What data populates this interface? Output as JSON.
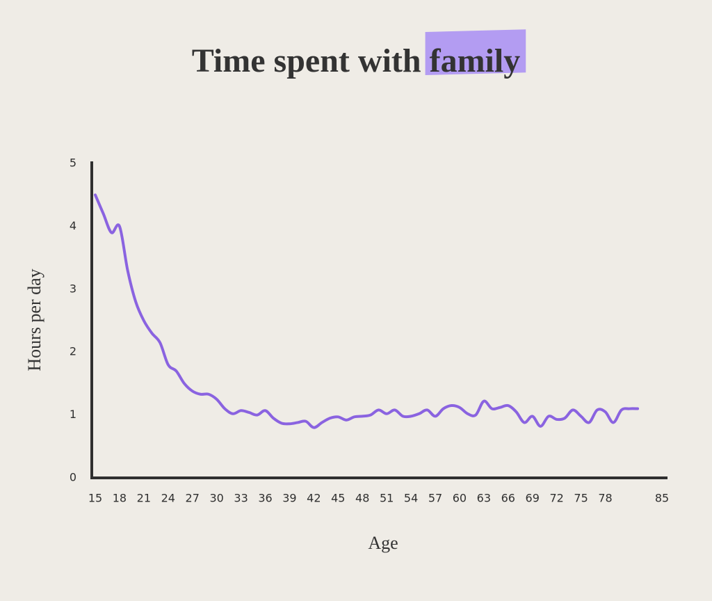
{
  "chart_data": {
    "type": "line",
    "title": "Time spent with family",
    "x_label": "Age",
    "y_label": "Hours per day",
    "x": [
      15,
      16,
      17,
      18,
      19,
      20,
      21,
      22,
      23,
      24,
      25,
      26,
      27,
      28,
      29,
      30,
      31,
      32,
      33,
      34,
      35,
      36,
      37,
      38,
      39,
      40,
      41,
      42,
      43,
      44,
      45,
      46,
      47,
      48,
      49,
      50,
      51,
      52,
      53,
      54,
      55,
      56,
      57,
      58,
      59,
      60,
      61,
      62,
      63,
      64,
      65,
      66,
      67,
      68,
      69,
      70,
      71,
      72,
      73,
      74,
      75,
      76,
      77,
      78,
      79,
      80,
      81,
      82
    ],
    "series": [
      {
        "name": "Hours per day",
        "color": "#8a63e0",
        "values": [
          4.5,
          4.2,
          3.9,
          4.0,
          3.3,
          2.8,
          2.5,
          2.3,
          2.15,
          1.8,
          1.7,
          1.5,
          1.38,
          1.33,
          1.33,
          1.25,
          1.1,
          1.02,
          1.07,
          1.04,
          1.0,
          1.07,
          0.95,
          0.87,
          0.86,
          0.88,
          0.9,
          0.8,
          0.88,
          0.95,
          0.97,
          0.92,
          0.97,
          0.98,
          1.0,
          1.08,
          1.02,
          1.08,
          0.98,
          0.98,
          1.02,
          1.08,
          0.98,
          1.1,
          1.15,
          1.12,
          1.02,
          1.0,
          1.22,
          1.1,
          1.12,
          1.15,
          1.05,
          0.88,
          0.98,
          0.82,
          0.98,
          0.93,
          0.95,
          1.08,
          0.98,
          0.88,
          1.08,
          1.05,
          0.88,
          1.08,
          1.1,
          1.1
        ]
      }
    ],
    "xlim": [
      15,
      85
    ],
    "xticks": [
      15,
      18,
      21,
      24,
      27,
      30,
      33,
      36,
      39,
      42,
      45,
      48,
      51,
      54,
      57,
      60,
      63,
      66,
      69,
      72,
      75,
      78,
      85
    ],
    "ylim": [
      0,
      5
    ],
    "yticks": [
      0,
      1,
      2,
      3,
      4,
      5
    ],
    "highlight_color": "#b39cf2"
  }
}
